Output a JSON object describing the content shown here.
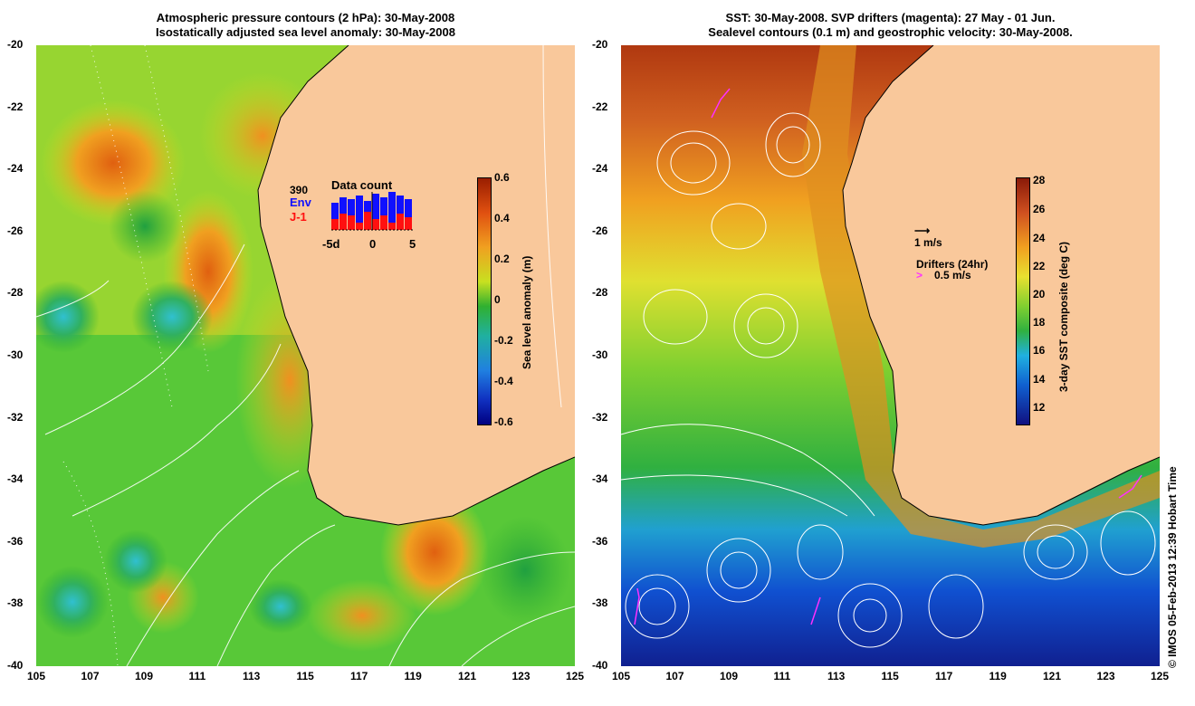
{
  "left_panel": {
    "title_line1": "Atmospheric pressure contours (2 hPa): 30-May-2008",
    "title_line2": "Isostatically adjusted sea level anomaly: 30-May-2008",
    "colorbar": {
      "label": "Sea level anomaly (m)",
      "ticks": [
        "0.6",
        "0.4",
        "0.2",
        "0",
        "-0.2",
        "-0.4",
        "-0.6"
      ]
    },
    "inset": {
      "count_total": "390",
      "env_label": "Env",
      "j1_label": "J-1",
      "title": "Data count",
      "xticks": [
        "-5d",
        "0",
        "5"
      ],
      "env_color": "#1010ff",
      "j1_color": "#ff1010"
    }
  },
  "right_panel": {
    "title_line1": "SST: 30-May-2008. SVP drifters (magenta): 27 May - 01 Jun.",
    "title_line2": "Sealevel contours (0.1 m) and geostrophic velocity: 30-May-2008.",
    "colorbar": {
      "label": "3-day SST composite (deg C)",
      "ticks": [
        "28",
        "26",
        "24",
        "22",
        "20",
        "18",
        "16",
        "14",
        "12"
      ]
    },
    "velocity_legend": "1 m/s",
    "drifters_legend_title": "Drifters (24hr)",
    "drifters_legend_value": "0.5 m/s",
    "drifter_color": "#ff30ff"
  },
  "axes": {
    "yticks": [
      "-20",
      "-22",
      "-24",
      "-26",
      "-28",
      "-30",
      "-32",
      "-34",
      "-36",
      "-38",
      "-40"
    ],
    "xticks": [
      "105",
      "107",
      "109",
      "111",
      "113",
      "115",
      "117",
      "119",
      "121",
      "123",
      "125"
    ]
  },
  "colors": {
    "land": "#f9c89b"
  },
  "credit": "© IMOS 05-Feb-2013 12:39 Hobart Time"
}
